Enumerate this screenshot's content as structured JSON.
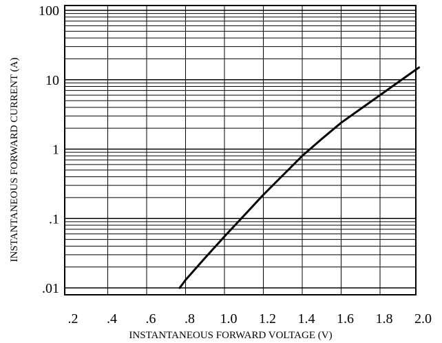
{
  "chart_data": {
    "type": "line",
    "title": "",
    "xlabel": "INSTANTANEOUS FORWARD VOLTAGE (V)",
    "ylabel": "INSTANTANEOUS FORWARD CURRENT (A)",
    "xlim": [
      0.2,
      2.0
    ],
    "ylim": [
      0.01,
      100
    ],
    "yscale": "log",
    "grid": true,
    "legend": "none",
    "x_ticks": [
      0.2,
      0.4,
      0.6,
      0.8,
      1.0,
      1.2,
      1.4,
      1.6,
      1.8,
      2.0
    ],
    "x_tick_labels": [
      ".2",
      ".4",
      ".6",
      ".8",
      "1.0",
      "1.2",
      "1.4",
      "1.6",
      "1.8",
      "2.0"
    ],
    "y_ticks": [
      0.01,
      0.1,
      1,
      10,
      100
    ],
    "y_tick_labels": [
      ".01",
      ".1",
      "1",
      "10",
      "100"
    ],
    "series": [
      {
        "color": "#000000",
        "x": [
          0.77,
          0.8,
          0.9,
          1.0,
          1.1,
          1.2,
          1.3,
          1.4,
          1.5,
          1.6,
          1.7,
          1.8,
          1.9,
          2.0
        ],
        "y": [
          0.01,
          0.013,
          0.027,
          0.055,
          0.11,
          0.22,
          0.42,
          0.8,
          1.4,
          2.4,
          3.8,
          6.0,
          9.5,
          15.0
        ]
      }
    ]
  }
}
